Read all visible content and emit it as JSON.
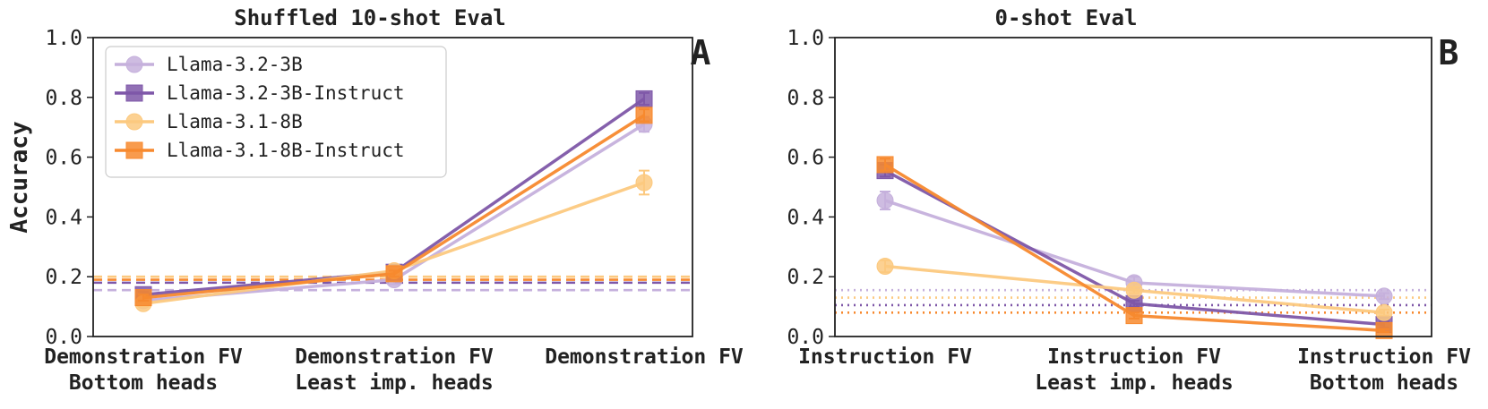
{
  "colors": {
    "llama32_base": "#c5b0dc",
    "llama32_instruct": "#7e57a8",
    "llama31_base": "#fcc97f",
    "llama31_instruct": "#f7892e"
  },
  "legend": {
    "entries": [
      {
        "label": "Llama-3.2-3B",
        "series": 0,
        "marker": "circle"
      },
      {
        "label": "Llama-3.2-3B-Instruct",
        "series": 1,
        "marker": "square"
      },
      {
        "label": "Llama-3.1-8B",
        "series": 2,
        "marker": "circle"
      },
      {
        "label": "Llama-3.1-8B-Instruct",
        "series": 3,
        "marker": "square"
      }
    ]
  },
  "chart_data": [
    {
      "type": "line",
      "panel_label": "A",
      "title": "Shuffled 10-shot Eval",
      "ylabel": "Accuracy",
      "ylim": [
        0,
        1.0
      ],
      "yticks": [
        "0.0",
        "0.2",
        "0.4",
        "0.6",
        "0.8",
        "1.0"
      ],
      "categories": [
        [
          "Demonstration FV",
          "Bottom heads"
        ],
        [
          "Demonstration FV",
          "Least imp. heads"
        ],
        [
          "Demonstration FV"
        ]
      ],
      "baseline_style": "dashed",
      "series": [
        {
          "name": "Llama-3.2-3B",
          "color_key": "llama32_base",
          "marker": "circle",
          "values": [
            0.12,
            0.19,
            0.71
          ],
          "errors": [
            0.01,
            0.015,
            0.025
          ],
          "baseline": 0.155
        },
        {
          "name": "Llama-3.2-3B-Instruct",
          "color_key": "llama32_instruct",
          "marker": "square",
          "values": [
            0.14,
            0.215,
            0.795
          ],
          "errors": [
            0.01,
            0.01,
            0.02
          ],
          "baseline": 0.18
        },
        {
          "name": "Llama-3.1-8B",
          "color_key": "llama31_base",
          "marker": "circle",
          "values": [
            0.11,
            0.22,
            0.515
          ],
          "errors": [
            0.01,
            0.01,
            0.04
          ],
          "baseline": 0.2
        },
        {
          "name": "Llama-3.1-8B-Instruct",
          "color_key": "llama31_instruct",
          "marker": "square",
          "values": [
            0.13,
            0.21,
            0.74
          ],
          "errors": [
            0.01,
            0.01,
            0.02
          ],
          "baseline": 0.19
        }
      ]
    },
    {
      "type": "line",
      "panel_label": "B",
      "title": "0-shot Eval",
      "ylabel": "",
      "ylim": [
        0,
        1.0
      ],
      "yticks": [
        "0.0",
        "0.2",
        "0.4",
        "0.6",
        "0.8",
        "1.0"
      ],
      "categories": [
        [
          "Instruction FV"
        ],
        [
          "Instruction FV",
          "Least imp. heads"
        ],
        [
          "Instruction FV",
          "Bottom heads"
        ]
      ],
      "baseline_style": "dotted",
      "series": [
        {
          "name": "Llama-3.2-3B",
          "color_key": "llama32_base",
          "marker": "circle",
          "values": [
            0.455,
            0.18,
            0.135
          ],
          "errors": [
            0.03,
            0.02,
            0.01
          ],
          "baseline": 0.155
        },
        {
          "name": "Llama-3.2-3B-Instruct",
          "color_key": "llama32_instruct",
          "marker": "square",
          "values": [
            0.555,
            0.11,
            0.04
          ],
          "errors": [
            0.02,
            0.01,
            0.01
          ],
          "baseline": 0.105
        },
        {
          "name": "Llama-3.1-8B",
          "color_key": "llama31_base",
          "marker": "circle",
          "values": [
            0.235,
            0.155,
            0.08
          ],
          "errors": [
            0.02,
            0.01,
            0.01
          ],
          "baseline": 0.13
        },
        {
          "name": "Llama-3.1-8B-Instruct",
          "color_key": "llama31_instruct",
          "marker": "square",
          "values": [
            0.575,
            0.07,
            0.02
          ],
          "errors": [
            0.02,
            0.01,
            0.005
          ],
          "baseline": 0.08
        }
      ]
    }
  ]
}
